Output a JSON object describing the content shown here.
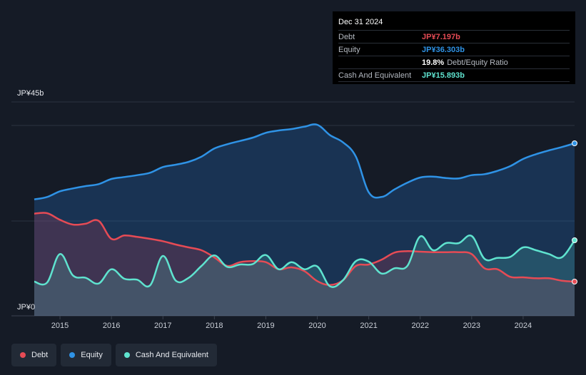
{
  "tooltip": {
    "date": "Dec 31 2024",
    "debt_label": "Debt",
    "debt_value": "JP¥7.197b",
    "equity_label": "Equity",
    "equity_value": "JP¥36.303b",
    "ratio_value": "19.8%",
    "ratio_label": "Debt/Equity Ratio",
    "cash_label": "Cash And Equivalent",
    "cash_value": "JP¥15.893b"
  },
  "legend": [
    {
      "label": "Debt",
      "color": "#e64b55"
    },
    {
      "label": "Equity",
      "color": "#2f93e6"
    },
    {
      "label": "Cash And Equivalent",
      "color": "#5fe3cf"
    }
  ],
  "chart_data": {
    "type": "area",
    "ylabel_top": "JP¥45b",
    "ylabel_bottom": "JP¥0",
    "ylim": [
      0,
      45
    ],
    "xlim": [
      2014.5,
      2025.0
    ],
    "x_ticks": [
      "2015",
      "2016",
      "2017",
      "2018",
      "2019",
      "2020",
      "2021",
      "2022",
      "2023",
      "2024"
    ],
    "colors": {
      "debt": "#e64b55",
      "equity": "#2f93e6",
      "cash": "#5fe3cf"
    },
    "series": [
      {
        "name": "Equity",
        "key": "equity",
        "x": [
          2014.5,
          2014.75,
          2015.0,
          2015.25,
          2015.5,
          2015.75,
          2016.0,
          2016.25,
          2016.5,
          2016.75,
          2017.0,
          2017.25,
          2017.5,
          2017.75,
          2018.0,
          2018.25,
          2018.5,
          2018.75,
          2019.0,
          2019.25,
          2019.5,
          2019.75,
          2020.0,
          2020.25,
          2020.5,
          2020.75,
          2021.0,
          2021.25,
          2021.5,
          2021.75,
          2022.0,
          2022.25,
          2022.5,
          2022.75,
          2023.0,
          2023.25,
          2023.5,
          2023.75,
          2024.0,
          2024.25,
          2024.5,
          2024.75,
          2025.0
        ],
        "values": [
          24.5,
          25.0,
          26.2,
          26.8,
          27.3,
          27.7,
          28.8,
          29.2,
          29.6,
          30.1,
          31.3,
          31.8,
          32.4,
          33.5,
          35.2,
          36.1,
          36.8,
          37.5,
          38.5,
          39.0,
          39.3,
          39.8,
          40.2,
          38.0,
          36.5,
          33.5,
          26.0,
          25.0,
          26.6,
          28.0,
          29.1,
          29.3,
          29.0,
          28.9,
          29.6,
          29.8,
          30.5,
          31.5,
          33.0,
          34.0,
          34.8,
          35.5,
          36.3
        ]
      },
      {
        "name": "Debt",
        "key": "debt",
        "x": [
          2014.5,
          2014.75,
          2015.0,
          2015.25,
          2015.5,
          2015.75,
          2016.0,
          2016.25,
          2016.5,
          2016.75,
          2017.0,
          2017.25,
          2017.5,
          2017.75,
          2018.0,
          2018.25,
          2018.5,
          2018.75,
          2019.0,
          2019.25,
          2019.5,
          2019.75,
          2020.0,
          2020.25,
          2020.5,
          2020.75,
          2021.0,
          2021.25,
          2021.5,
          2021.75,
          2022.0,
          2022.25,
          2022.5,
          2022.75,
          2023.0,
          2023.25,
          2023.5,
          2023.75,
          2024.0,
          2024.25,
          2024.5,
          2024.75,
          2025.0
        ],
        "values": [
          21.5,
          21.6,
          20.2,
          19.2,
          19.4,
          20.0,
          16.2,
          16.9,
          16.6,
          16.2,
          15.7,
          15.0,
          14.4,
          13.8,
          12.3,
          10.5,
          11.3,
          11.5,
          11.3,
          9.8,
          10.2,
          9.4,
          7.3,
          6.5,
          7.5,
          10.5,
          10.8,
          11.8,
          13.3,
          13.6,
          13.5,
          13.4,
          13.4,
          13.4,
          13.0,
          10.0,
          9.8,
          8.2,
          8.1,
          7.9,
          7.9,
          7.4,
          7.2
        ]
      },
      {
        "name": "Cash And Equivalent",
        "key": "cash",
        "x": [
          2014.5,
          2014.75,
          2015.0,
          2015.25,
          2015.5,
          2015.75,
          2016.0,
          2016.25,
          2016.5,
          2016.75,
          2017.0,
          2017.25,
          2017.5,
          2017.75,
          2018.0,
          2018.25,
          2018.5,
          2018.75,
          2019.0,
          2019.25,
          2019.5,
          2019.75,
          2020.0,
          2020.25,
          2020.5,
          2020.75,
          2021.0,
          2021.25,
          2021.5,
          2021.75,
          2022.0,
          2022.25,
          2022.5,
          2022.75,
          2023.0,
          2023.25,
          2023.5,
          2023.75,
          2024.0,
          2024.25,
          2024.5,
          2024.75,
          2025.0
        ],
        "values": [
          7.2,
          7.0,
          13.0,
          8.5,
          8.0,
          6.8,
          9.8,
          7.8,
          7.6,
          6.4,
          12.6,
          7.4,
          8.0,
          10.5,
          12.7,
          10.3,
          10.8,
          10.9,
          12.8,
          9.8,
          11.3,
          9.8,
          10.4,
          6.2,
          7.5,
          11.5,
          11.4,
          8.9,
          10.0,
          10.5,
          16.7,
          13.8,
          15.3,
          15.3,
          16.8,
          12.0,
          12.2,
          12.4,
          14.4,
          13.8,
          13.0,
          12.3,
          15.9
        ]
      }
    ]
  }
}
